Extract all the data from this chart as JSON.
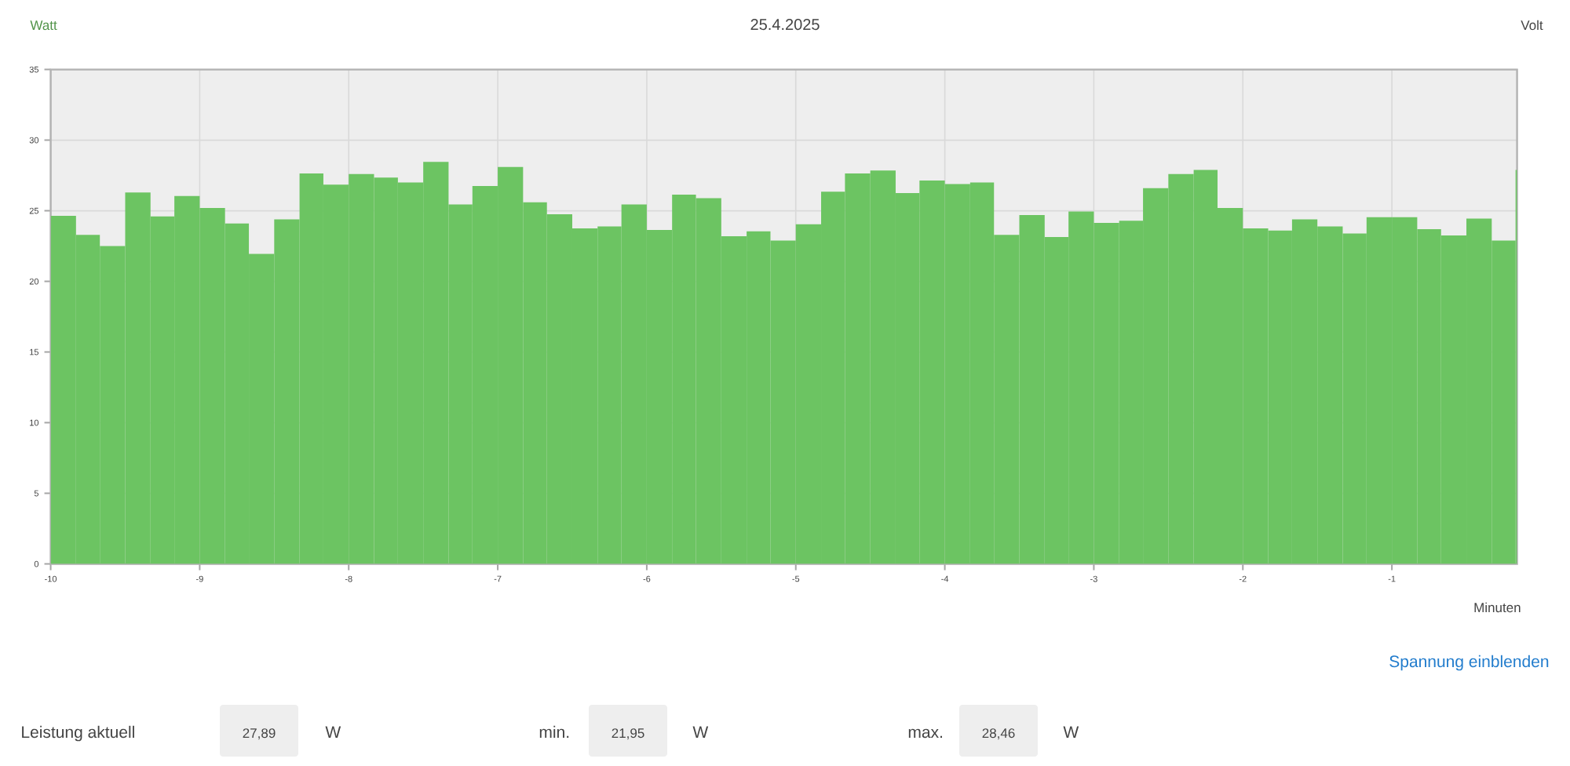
{
  "chart_data": {
    "type": "histogram",
    "title": "25.4.2025",
    "ylabel": "Watt",
    "y2label": "Volt",
    "xlabel": "Minuten",
    "color": "#6cc462",
    "bins": [
      -10,
      -9.83,
      -9.67,
      -9.5,
      -9.33,
      -9.17,
      -9,
      -8.83,
      -8.67,
      -8.5,
      -8.33,
      -8.17,
      -8,
      -7.83,
      -7.67,
      -7.5,
      -7.33,
      -7.17,
      -7,
      -6.83,
      -6.67,
      -6.5,
      -6.33,
      -6.17,
      -6,
      -5.83,
      -5.67,
      -5.5,
      -5.33,
      -5.17,
      -5,
      -4.83,
      -4.67,
      -4.5,
      -4.33,
      -4.17,
      -4,
      -3.83,
      -3.67,
      -3.5,
      -3.33,
      -3.17,
      -3,
      -2.83,
      -2.67,
      -2.5,
      -2.33,
      -2.17,
      -2,
      -1.83,
      -1.67,
      -1.5,
      -1.33,
      -1.17,
      -1,
      -0.83,
      -0.67,
      -0.5,
      -0.33,
      -0.17,
      -0.16
    ],
    "values": [
      24.65,
      23.3,
      22.5,
      26.3,
      24.6,
      26.05,
      25.2,
      24.1,
      21.95,
      24.4,
      27.65,
      26.85,
      27.6,
      27.35,
      27.0,
      28.46,
      25.45,
      26.75,
      28.1,
      25.6,
      24.75,
      23.75,
      23.9,
      25.45,
      23.65,
      26.15,
      25.9,
      23.2,
      23.55,
      22.9,
      24.05,
      26.35,
      27.65,
      27.85,
      26.25,
      27.15,
      26.9,
      27.0,
      23.3,
      24.7,
      23.15,
      24.95,
      24.15,
      24.3,
      26.6,
      27.6,
      27.9,
      25.2,
      23.75,
      23.6,
      24.4,
      23.9,
      23.4,
      24.55,
      24.55,
      23.7,
      23.25,
      24.45,
      22.9,
      27.89
    ],
    "xlim": [
      -10,
      -0.16
    ],
    "ylim": [
      0,
      35
    ],
    "xticks": [
      -10,
      -9,
      -8,
      -7,
      -6,
      -5,
      -4,
      -3,
      -2,
      -1
    ],
    "yticks": [
      0,
      5,
      10,
      15,
      20,
      25,
      30,
      35
    ],
    "grid": true,
    "annotations": [
      "Spannung einblenden",
      "Leistung aktuell",
      "27,89",
      "W",
      "min.",
      "21,95",
      "W",
      "max.",
      "28,46",
      "W"
    ]
  }
}
